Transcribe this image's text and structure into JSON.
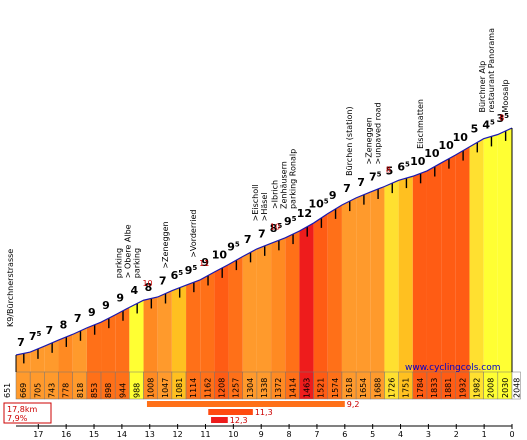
{
  "chart_data": {
    "type": "area",
    "start": {
      "label": "K9/Bürchnerstrasse",
      "elevation": 651
    },
    "end_elevation": 2048,
    "credit": "www.cyclingcols.com",
    "stats": {
      "distance": "17,8km",
      "avg_gradient": "7,9%"
    },
    "km_ticks": [
      "17",
      "16",
      "15",
      "14",
      "13",
      "12",
      "11",
      "10",
      "9",
      "8",
      "7",
      "6",
      "5",
      "4",
      "3",
      "2",
      "1",
      "0"
    ],
    "segments": [
      {
        "grad": "7",
        "dec": "",
        "elev": "669",
        "color": "#ff9a2c"
      },
      {
        "grad": "7",
        "dec": "5",
        "elev": "705",
        "color": "#ff9a2c"
      },
      {
        "grad": "7",
        "dec": "",
        "elev": "743",
        "color": "#ff9a2c"
      },
      {
        "grad": "8",
        "dec": "",
        "elev": "778",
        "color": "#ff8a22"
      },
      {
        "grad": "7",
        "dec": "",
        "elev": "818",
        "color": "#ff9a2c"
      },
      {
        "grad": "9",
        "dec": "",
        "elev": "853",
        "color": "#ff7018"
      },
      {
        "grad": "9",
        "dec": "",
        "elev": "898",
        "color": "#ff7018"
      },
      {
        "grad": "9",
        "dec": "",
        "elev": "944",
        "color": "#ff7018"
      },
      {
        "grad": "4",
        "dec": "",
        "elev": "988",
        "color": "#ffff33"
      },
      {
        "grad": "8",
        "dec": "",
        "elev": "1008",
        "color": "#ff8a22"
      },
      {
        "grad": "7",
        "dec": "",
        "elev": "1047",
        "color": "#ff9a2c"
      },
      {
        "grad": "6",
        "dec": "5",
        "elev": "1081",
        "color": "#ffc020"
      },
      {
        "grad": "9",
        "dec": "5",
        "elev": "1114",
        "color": "#ff7018"
      },
      {
        "grad": "9",
        "dec": "",
        "elev": "1162",
        "color": "#ff7018"
      },
      {
        "grad": "10",
        "dec": "",
        "elev": "1208",
        "color": "#ff5c14"
      },
      {
        "grad": "9",
        "dec": "5",
        "elev": "1257",
        "color": "#ff7018"
      },
      {
        "grad": "7",
        "dec": "",
        "elev": "1304",
        "color": "#ff9a2c"
      },
      {
        "grad": "7",
        "dec": "",
        "elev": "1338",
        "color": "#ff9a2c"
      },
      {
        "grad": "8",
        "dec": "5",
        "elev": "1372",
        "color": "#ff8a22"
      },
      {
        "grad": "9",
        "dec": "5",
        "elev": "1414",
        "color": "#ff7018"
      },
      {
        "grad": "12",
        "dec": "",
        "elev": "1463",
        "color": "#ee1c1c"
      },
      {
        "grad": "10",
        "dec": "5",
        "elev": "1521",
        "color": "#ff5c14"
      },
      {
        "grad": "9",
        "dec": "",
        "elev": "1574",
        "color": "#ff7018"
      },
      {
        "grad": "7",
        "dec": "",
        "elev": "1618",
        "color": "#ff9a2c"
      },
      {
        "grad": "7",
        "dec": "",
        "elev": "1654",
        "color": "#ff9a2c"
      },
      {
        "grad": "7",
        "dec": "5",
        "elev": "1688",
        "color": "#ff9a2c"
      },
      {
        "grad": "5",
        "dec": "",
        "elev": "1726",
        "color": "#ffe030"
      },
      {
        "grad": "6",
        "dec": "5",
        "elev": "1751",
        "color": "#ffc020"
      },
      {
        "grad": "10",
        "dec": "",
        "elev": "1784",
        "color": "#ff5c14"
      },
      {
        "grad": "10",
        "dec": "",
        "elev": "1833",
        "color": "#ff5c14"
      },
      {
        "grad": "10",
        "dec": "",
        "elev": "1881",
        "color": "#ff5c14"
      },
      {
        "grad": "10",
        "dec": "",
        "elev": "1932",
        "color": "#ff5c14"
      },
      {
        "grad": "5",
        "dec": "",
        "elev": "1982",
        "color": "#ffe030"
      },
      {
        "grad": "4",
        "dec": "5",
        "elev": "2008",
        "color": "#ffff33"
      },
      {
        "grad": "3",
        "dec": "5",
        "elev": "2030",
        "color": "#ffff33"
      }
    ],
    "waypoints": [
      {
        "seg": 9,
        "lines": [
          "parking",
          "> Obere Albe",
          "parking"
        ],
        "max": "10"
      },
      {
        "seg": 11,
        "lines": [
          ">Zeneggen"
        ]
      },
      {
        "seg": 13,
        "lines": [
          ">Vorderried"
        ],
        "max": "11"
      },
      {
        "seg": 18,
        "lines": [
          ">Eischoll",
          ">Häsel"
        ],
        "max": "10"
      },
      {
        "seg": 20,
        "lines": [
          ">Ibrich",
          "Zenhäusern",
          "parking Ronalp"
        ]
      },
      {
        "seg": 24,
        "lines": [
          "Bürchen (station)"
        ]
      },
      {
        "seg": 26,
        "lines": [
          ">Zeneggen",
          ">unpaved road"
        ],
        "max": "8"
      },
      {
        "seg": 29,
        "lines": [
          "Eischmatten"
        ]
      },
      {
        "seg": 34,
        "lines": [
          "Bürchner Alp",
          "restaurant Panorama"
        ],
        "max": "8"
      },
      {
        "seg": 35,
        "lines": [
          "Moosalp"
        ]
      }
    ],
    "legend_bars": [
      {
        "label": "9,2",
        "from": 4.7,
        "to": 11.8,
        "color": "#ff7018"
      },
      {
        "label": "11,3",
        "from": 6.9,
        "to": 8.5,
        "color": "#ff4a10"
      },
      {
        "label": "12,3",
        "from": 7.0,
        "to": 7.6,
        "color": "#ee1c1c"
      }
    ],
    "colors": {
      "ramp_dark": "#000000",
      "sky_line": "#1a1ab0"
    }
  }
}
